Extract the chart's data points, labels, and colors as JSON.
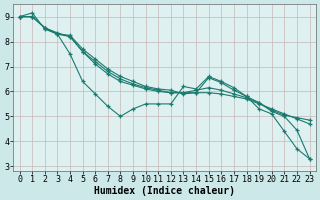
{
  "bg_color": "#cce8e8",
  "plot_bg_color": "#dff0f0",
  "line_color": "#1a7a6e",
  "grid_color": "#c8b8b8",
  "series": [
    {
      "x": [
        0,
        1,
        2,
        3,
        4,
        5,
        6,
        7,
        8,
        9,
        10,
        11,
        12,
        13,
        14,
        15,
        16,
        17,
        18,
        19,
        20,
        21,
        22,
        23
      ],
      "y": [
        9.0,
        9.15,
        8.5,
        8.3,
        7.5,
        6.4,
        5.9,
        5.4,
        5.0,
        5.3,
        5.5,
        5.5,
        5.5,
        6.2,
        6.1,
        6.6,
        6.4,
        6.15,
        5.8,
        5.3,
        5.1,
        4.4,
        3.7,
        3.3
      ]
    },
    {
      "x": [
        0,
        1,
        2,
        3,
        4,
        5,
        6,
        7,
        8,
        9,
        10,
        11,
        12,
        13,
        14,
        15,
        16,
        17,
        18,
        19,
        20,
        21,
        22,
        23
      ],
      "y": [
        9.0,
        9.0,
        8.55,
        8.3,
        8.25,
        7.7,
        7.3,
        6.9,
        6.6,
        6.4,
        6.2,
        6.1,
        6.05,
        5.9,
        5.95,
        5.95,
        5.9,
        5.8,
        5.7,
        5.5,
        5.3,
        5.1,
        4.9,
        4.7
      ]
    },
    {
      "x": [
        0,
        1,
        2,
        3,
        4,
        5,
        6,
        7,
        8,
        9,
        10,
        11,
        12,
        13,
        14,
        15,
        16,
        17,
        18,
        19,
        20,
        21,
        22,
        23
      ],
      "y": [
        9.0,
        9.0,
        8.55,
        8.3,
        8.2,
        7.6,
        7.2,
        6.8,
        6.5,
        6.3,
        6.15,
        6.05,
        5.95,
        5.95,
        6.05,
        6.15,
        6.05,
        5.9,
        5.75,
        5.55,
        5.25,
        5.05,
        4.95,
        4.85
      ]
    },
    {
      "x": [
        0,
        1,
        2,
        3,
        4,
        5,
        6,
        7,
        8,
        9,
        10,
        11,
        12,
        13,
        14,
        15,
        16,
        17,
        18,
        19,
        20,
        21,
        22,
        23
      ],
      "y": [
        9.0,
        9.0,
        8.55,
        8.35,
        8.2,
        7.6,
        7.1,
        6.7,
        6.4,
        6.25,
        6.1,
        6.0,
        5.95,
        5.95,
        5.95,
        6.55,
        6.35,
        6.05,
        5.8,
        5.55,
        5.2,
        5.0,
        4.45,
        3.3
      ]
    }
  ],
  "xlabel": "Humidex (Indice chaleur)",
  "xlim": [
    -0.5,
    23.5
  ],
  "ylim": [
    2.8,
    9.5
  ],
  "yticks": [
    3,
    4,
    5,
    6,
    7,
    8,
    9
  ],
  "xticks": [
    0,
    1,
    2,
    3,
    4,
    5,
    6,
    7,
    8,
    9,
    10,
    11,
    12,
    13,
    14,
    15,
    16,
    17,
    18,
    19,
    20,
    21,
    22,
    23
  ],
  "marker": "+",
  "marker_size": 3.5,
  "linewidth": 0.8,
  "xlabel_fontsize": 7,
  "tick_fontsize": 6
}
